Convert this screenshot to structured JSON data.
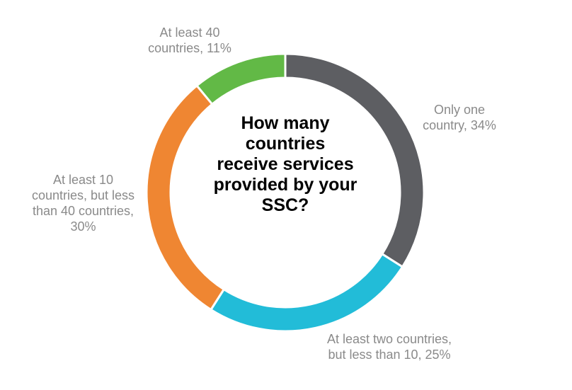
{
  "chart_data": {
    "type": "pie",
    "title": "How many countries receive services provided by your SSC?",
    "slices": [
      {
        "label": "Only one country, 34%",
        "value": 34,
        "color": "#5d5e62"
      },
      {
        "label": "At least two countries, but less than 10, 25%",
        "value": 25,
        "color": "#22bcd8"
      },
      {
        "label": "At least 10 countries, but less than 40 countries, 30%",
        "value": 30,
        "color": "#ef8632"
      },
      {
        "label": "At least 40 countries, 11%",
        "value": 11,
        "color": "#62b946"
      }
    ],
    "legend": "none",
    "donut": true
  }
}
